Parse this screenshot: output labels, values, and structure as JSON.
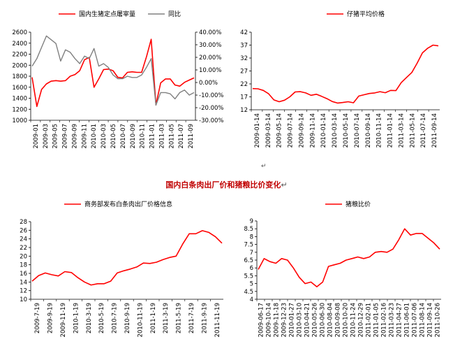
{
  "page": {
    "center_title": "国内白条肉出厂价和猪粮比价变化",
    "para_mark": "↵"
  },
  "chart_data": [
    {
      "type": "line",
      "legend": [
        "国内生猪定点屠宰量",
        "同比"
      ],
      "legend_position": "top",
      "x_tick_labels": [
        "2009-01",
        "2009-03",
        "2009-05",
        "2009-07",
        "2009-09",
        "2009-11",
        "2010-01",
        "2010-03",
        "2010-05",
        "2010-07",
        "2010-09",
        "2010-11",
        "2011-01",
        "2011-03",
        "2011-05",
        "2011-07",
        "2011-09"
      ],
      "y_left_range": [
        1000,
        2600
      ],
      "y_left_ticks": [
        "2600",
        "2400",
        "2200",
        "2000",
        "1800",
        "1600",
        "1400",
        "1200",
        "1000"
      ],
      "y_right_range": [
        -30,
        40
      ],
      "y_right_ticks": [
        "40.00%",
        "30.00%",
        "20.00%",
        "10.00%",
        "0.00%",
        "-10.00%",
        "-20.00%",
        "-30.00%"
      ],
      "series": [
        {
          "name": "国内生猪定点屠宰量",
          "axis": "left",
          "color": "#ff0000",
          "values": [
            1780,
            1250,
            1560,
            1660,
            1710,
            1720,
            1710,
            1720,
            1800,
            1830,
            1900,
            2100,
            2140,
            1600,
            1750,
            1920,
            1930,
            1900,
            1780,
            1770,
            1870,
            1880,
            1870,
            1870,
            2150,
            2470,
            1280,
            1680,
            1750,
            1750,
            1640,
            1620,
            1690,
            1730,
            1770
          ]
        },
        {
          "name": "同比",
          "axis": "right",
          "color": "#808080",
          "values": [
            13,
            19,
            28,
            37,
            34,
            31,
            17,
            26,
            24,
            19,
            15,
            21,
            19,
            27,
            13,
            15,
            12,
            6,
            3,
            3,
            5,
            4,
            4,
            6,
            12,
            19,
            -18,
            -8,
            -8,
            -9,
            -13,
            -8,
            -6,
            -10,
            -8
          ]
        }
      ]
    },
    {
      "type": "line",
      "legend": [
        "仔猪平均价格"
      ],
      "legend_position": "top",
      "x_tick_labels": [
        "2009-01-14",
        "2009-03-14",
        "2009-05-14",
        "2009-07-14",
        "2009-09-14",
        "2009-11-14",
        "2010-01-14",
        "2010-03-14",
        "2010-05-14",
        "2010-07-14",
        "2010-09-14",
        "2010-11-14",
        "2011-01-14",
        "2011-03-14",
        "2011-05-14",
        "2011-07-14",
        "2011-09-14"
      ],
      "y_range": [
        12,
        42
      ],
      "y_ticks": [
        "42",
        "37",
        "32",
        "27",
        "22",
        "17",
        "12"
      ],
      "series": [
        {
          "name": "仔猪平均价格",
          "color": "#ff0000",
          "values": [
            20.2,
            20.1,
            19.5,
            18.2,
            15.8,
            15.1,
            15.7,
            17.0,
            18.9,
            19.0,
            18.5,
            17.6,
            18.0,
            17.2,
            16.3,
            15.2,
            14.6,
            14.8,
            15.1,
            14.7,
            17.3,
            17.8,
            18.3,
            18.5,
            19.0,
            18.6,
            19.5,
            19.4,
            22.5,
            24.5,
            26.4,
            30.0,
            34.0,
            35.8,
            37.0,
            36.7
          ]
        }
      ]
    },
    {
      "type": "line",
      "legend": [
        "商务部发布白条肉出厂价格信息"
      ],
      "legend_position": "top",
      "x_tick_labels": [
        "2009-7-19",
        "2009-9-19",
        "2009-11-19",
        "2010-1-19",
        "2010-3-19",
        "2010-5-19",
        "2010-7-19",
        "2010-9-19",
        "2010-11-19",
        "2011-1-19",
        "2011-3-19",
        "2011-5-19",
        "2011-7-19",
        "2011-9-19",
        "2011-11-19"
      ],
      "y_range": [
        10,
        28
      ],
      "y_ticks": [
        "28",
        "26",
        "24",
        "22",
        "20",
        "18",
        "16",
        "14",
        "12",
        "10"
      ],
      "series": [
        {
          "name": "商务部发布白条肉出厂价格信息",
          "color": "#ff0000",
          "values": [
            14.2,
            15.5,
            16.1,
            15.7,
            15.4,
            16.4,
            16.2,
            15.0,
            14.0,
            13.3,
            13.6,
            13.6,
            14.2,
            16.1,
            16.6,
            17.0,
            17.5,
            18.4,
            18.3,
            18.6,
            19.2,
            19.7,
            20.0,
            22.8,
            25.2,
            25.2,
            25.9,
            25.5,
            24.5,
            23.0
          ]
        }
      ]
    },
    {
      "type": "line",
      "legend": [
        "猪粮比价"
      ],
      "legend_position": "top",
      "x_tick_labels": [
        "2009-06-17",
        "2009-10-14",
        "2009-11-18",
        "2009-12-23",
        "2010-01-27",
        "2010-03-10",
        "2010-04-21",
        "2010-05-26",
        "2010-06-30",
        "2010-08-04",
        "2010-09-08",
        "2010-10-20",
        "2010-11-24",
        "2010-12-29",
        "2011-02-01",
        "2011-01-05",
        "2011-02-16",
        "2011-03-23",
        "2011-04-27",
        "2011-06-01",
        "2011-07-06",
        "2011-08-14",
        "2011-09-14",
        "2011-10-26"
      ],
      "y_range": [
        4,
        9
      ],
      "y_ticks": [
        "9",
        "8.5",
        "8",
        "7.5",
        "7",
        "6.5",
        "6",
        "5.5",
        "5",
        "4.5",
        "4"
      ],
      "series": [
        {
          "name": "猪粮比价",
          "color": "#ff0000",
          "values": [
            5.9,
            6.6,
            6.4,
            6.3,
            6.6,
            6.5,
            6.0,
            5.4,
            5.0,
            5.1,
            4.8,
            5.1,
            6.1,
            6.2,
            6.3,
            6.5,
            6.6,
            6.7,
            6.6,
            6.7,
            7.0,
            7.05,
            7.0,
            7.2,
            7.8,
            8.5,
            8.1,
            8.2,
            8.2,
            7.9,
            7.6,
            7.2
          ]
        }
      ]
    }
  ]
}
